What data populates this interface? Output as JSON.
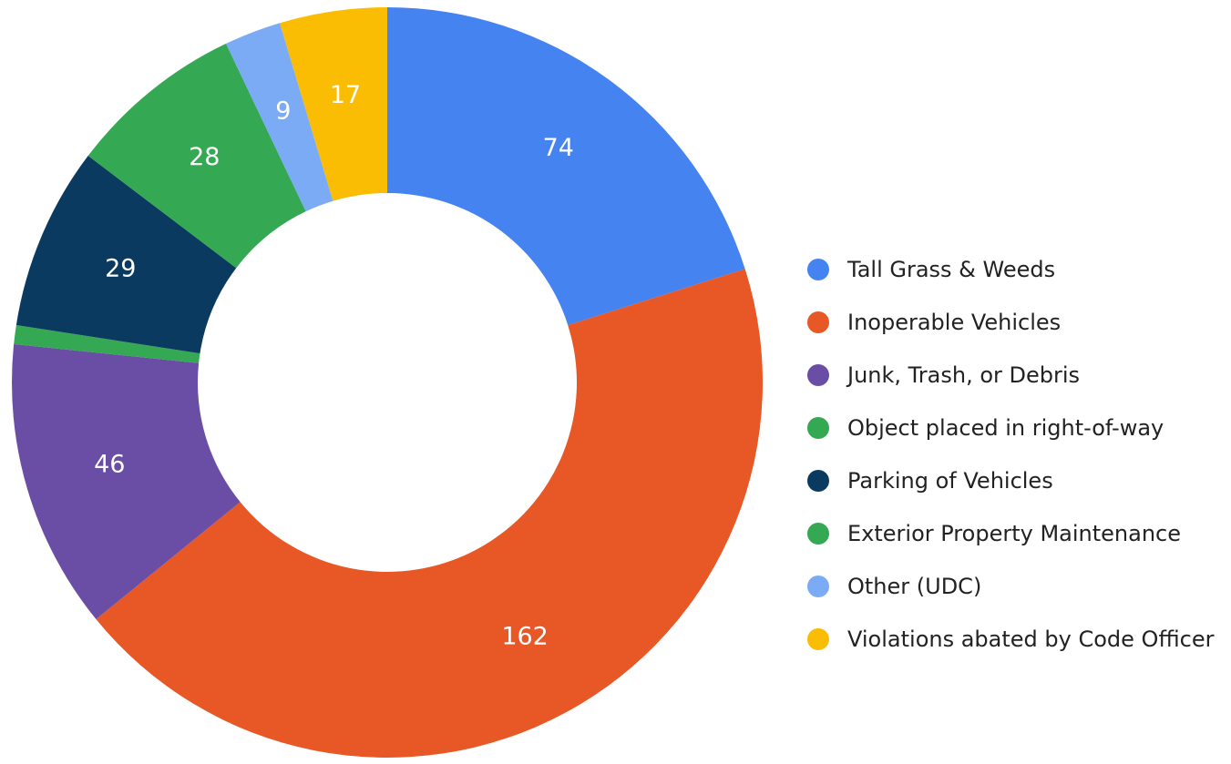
{
  "chart_data": {
    "type": "donut",
    "categories": [
      "Tall Grass & Weeds",
      "Inoperable Vehicles",
      "Junk, Trash, or Debris",
      "Object placed in right-of-way",
      "Parking of Vehicles",
      "Exterior Property Maintenance",
      "Other (UDC)",
      "Violations abated by Code Officer"
    ],
    "values": [
      74,
      162,
      46,
      3,
      29,
      28,
      9,
      17
    ],
    "colors": [
      "#4583f0",
      "#e85726",
      "#6a4ea6",
      "#34a853",
      "#0b3a60",
      "#34a853",
      "#7babf5",
      "#fbbc04"
    ],
    "legend": "right"
  }
}
